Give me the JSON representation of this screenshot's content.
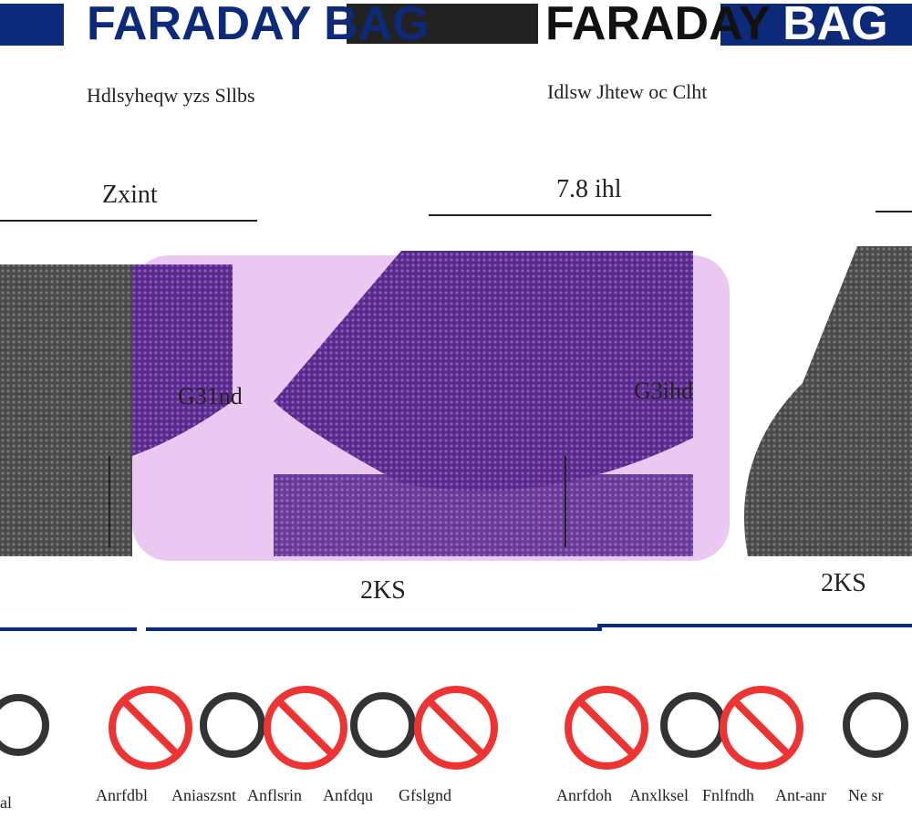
{
  "header": {
    "left_title": "FARADAY BAG",
    "right_title_main": "FARADAY",
    "right_title_accent": "BAG"
  },
  "panels": [
    {
      "subtitle": "Hdlsyheqw yzs Sllbs",
      "width_label": "Zxint",
      "height_label": "G31nd",
      "depth_label": "2KS"
    },
    {
      "subtitle": "Idlsw Jhtew oc Clht",
      "width_label": "7.8 ihl",
      "height_label": "G3ihd",
      "depth_label": "2KS"
    }
  ],
  "icons": {
    "left": [
      "Anrfdbl",
      "Aniaszsnt",
      "Anflsrin",
      "Anfdqu",
      "Gfslgnd"
    ],
    "right": [
      "Anrfdoh",
      "Anxlksel",
      "Fnlfndh",
      "Ant-anr",
      "Ne sr"
    ],
    "edge": "al"
  }
}
